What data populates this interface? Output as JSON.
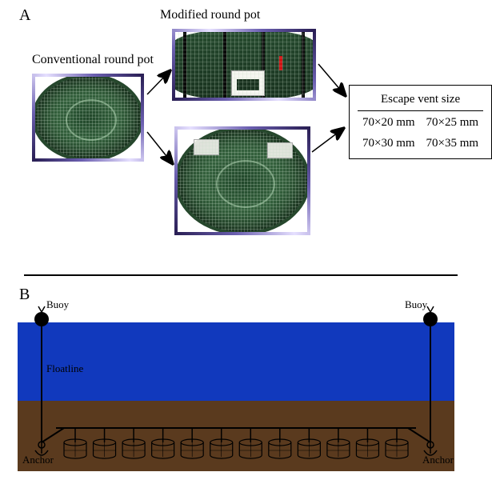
{
  "panelA": {
    "label": "A",
    "conventional_label": "Conventional round pot",
    "modified_label": "Modified round pot",
    "table_header": "Escape vent size",
    "vent_sizes": [
      [
        "70×20 mm",
        "70×25 mm"
      ],
      [
        "70×30 mm",
        "70×35 mm"
      ]
    ],
    "pot_mesh_color": "#1f4a2a",
    "rope_colors": [
      "#2a1f55",
      "#e6e0ff"
    ]
  },
  "panelB": {
    "label": "B",
    "buoy_label": "Buoy",
    "floatline_label": "Floatline",
    "anchor_label": "Anchor",
    "water_color": "#1139bd",
    "seabed_color": "#5a3a1e",
    "n_pots": 12,
    "buoy_radius": 9,
    "pot_width": 28,
    "pot_height": 20
  }
}
